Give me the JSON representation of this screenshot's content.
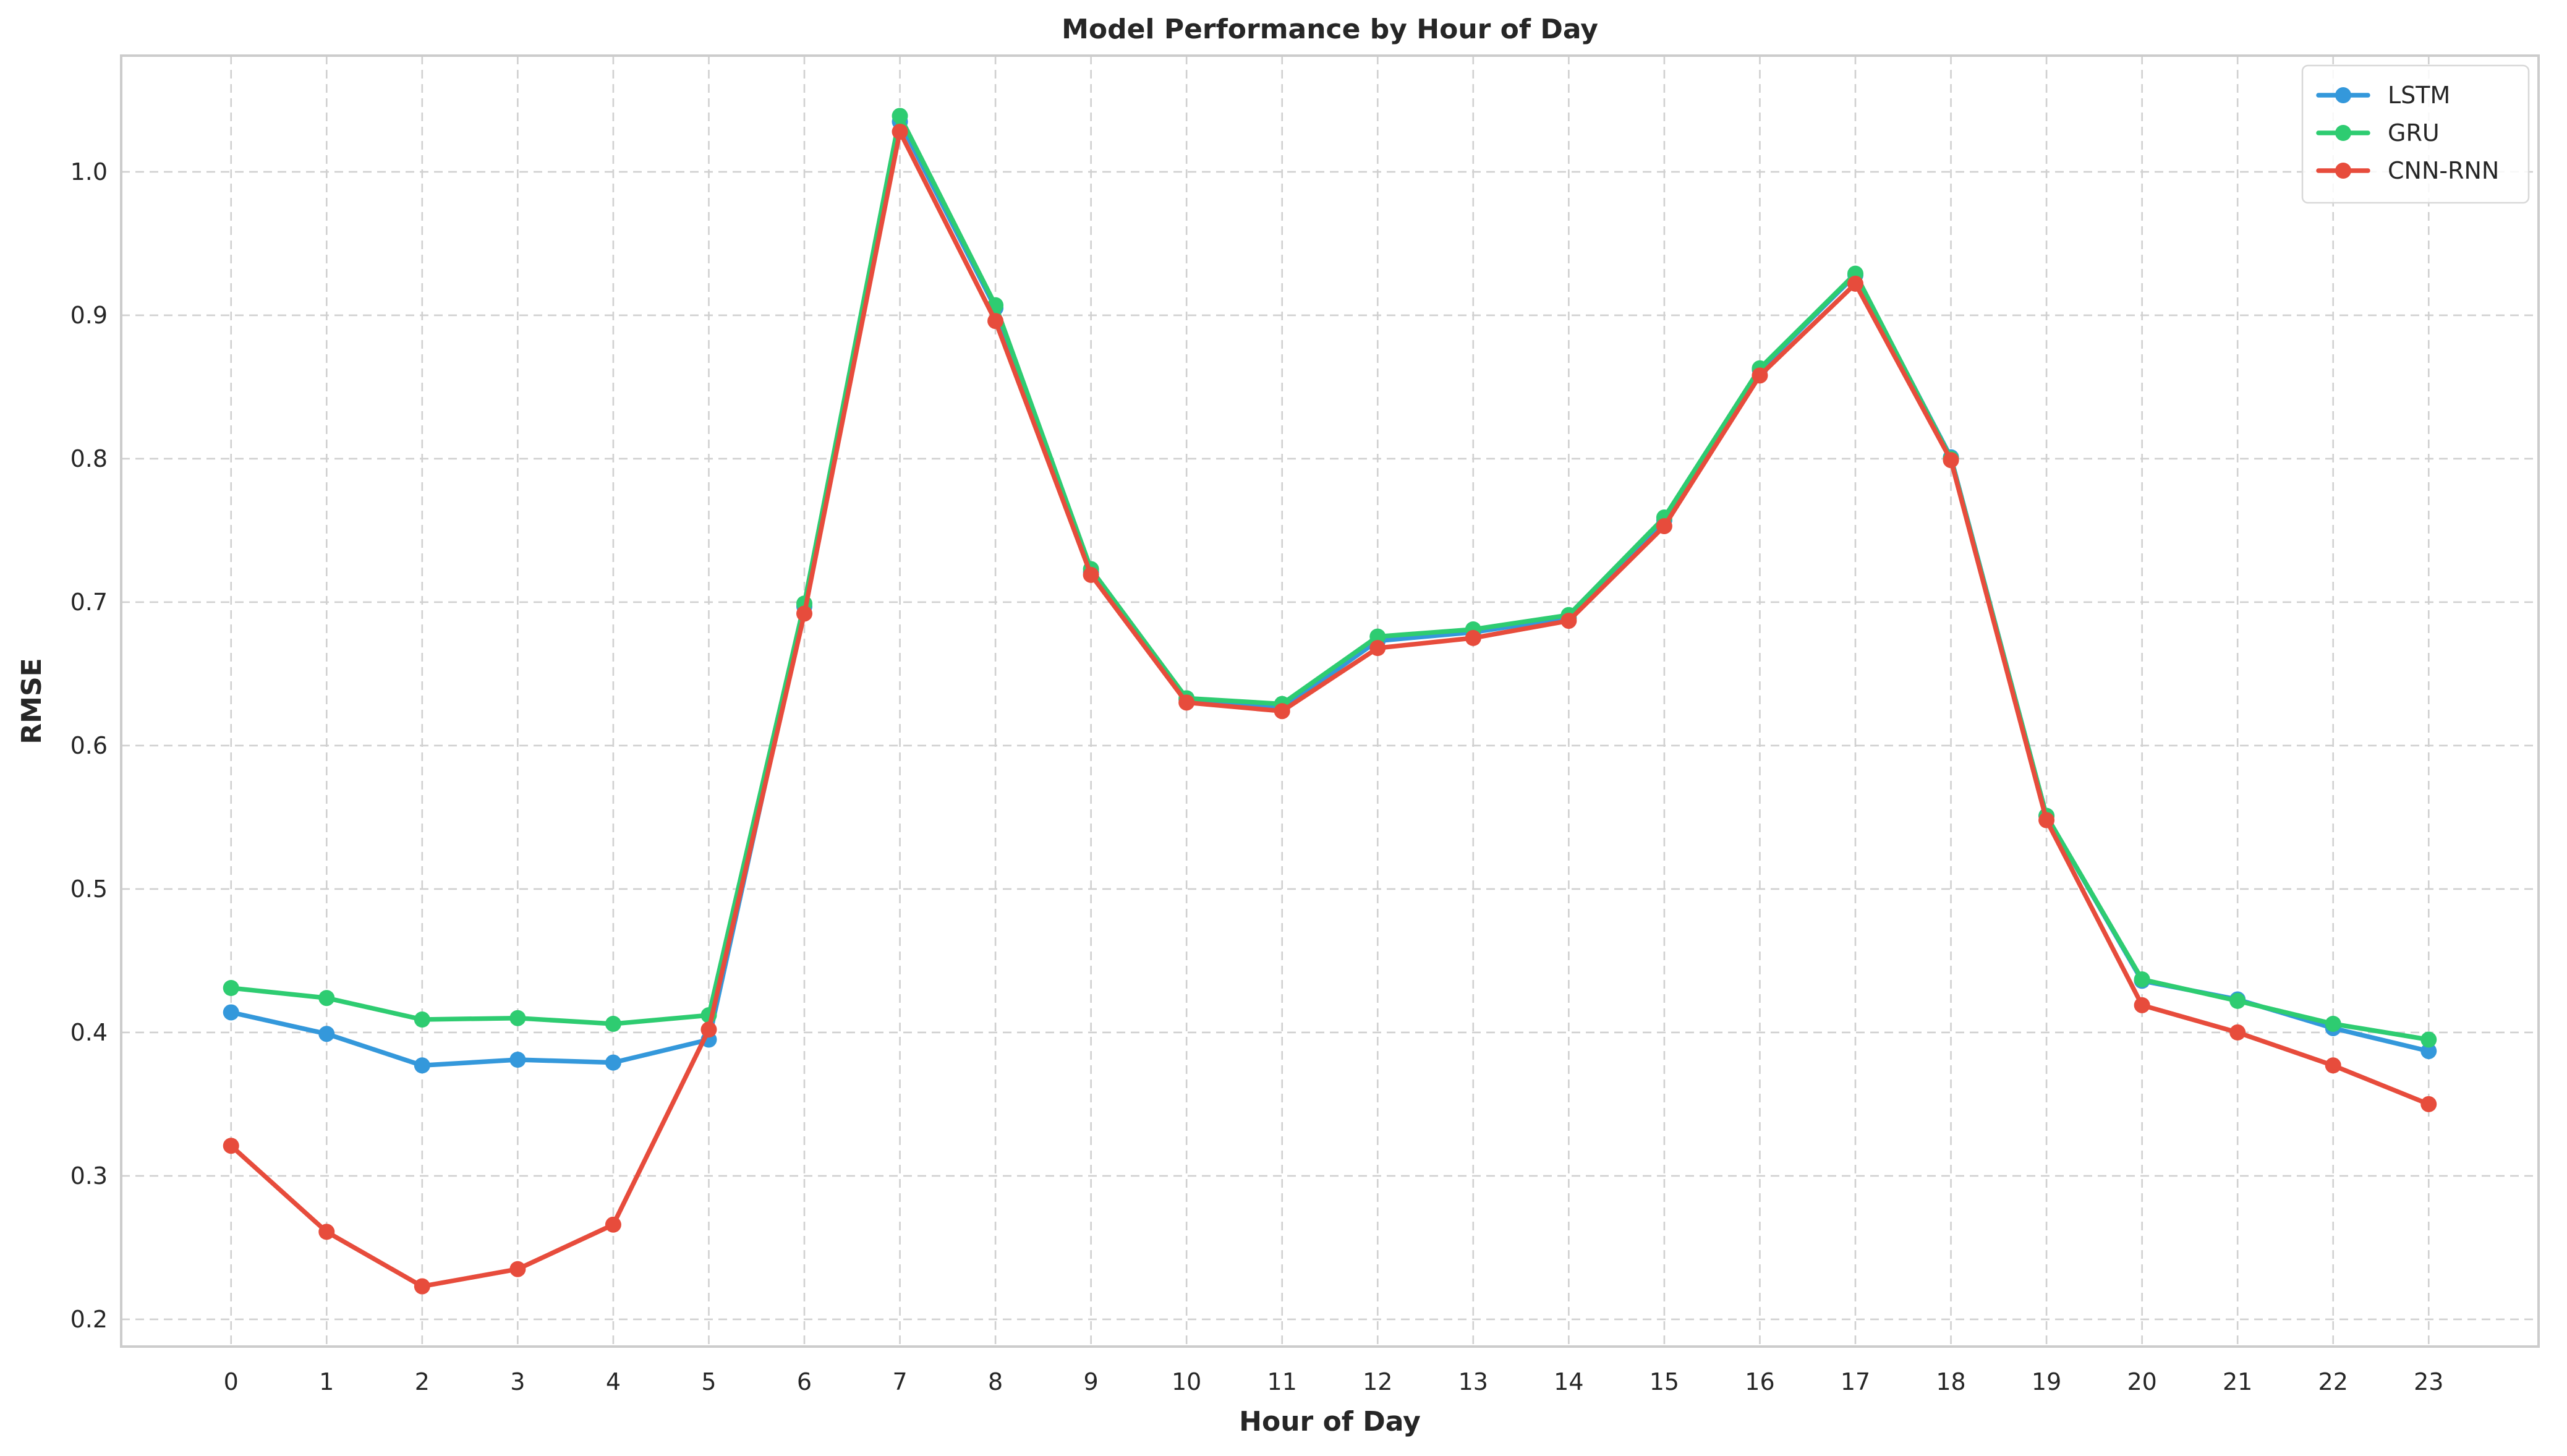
{
  "chart_data": {
    "type": "line",
    "title": "Model Performance by Hour of Day",
    "xlabel": "Hour of Day",
    "ylabel": "RMSE",
    "x": [
      0,
      1,
      2,
      3,
      4,
      5,
      6,
      7,
      8,
      9,
      10,
      11,
      12,
      13,
      14,
      15,
      16,
      17,
      18,
      19,
      20,
      21,
      22,
      23
    ],
    "x_tick_labels": [
      "0",
      "1",
      "2",
      "3",
      "4",
      "5",
      "6",
      "7",
      "8",
      "9",
      "10",
      "11",
      "12",
      "13",
      "14",
      "15",
      "16",
      "17",
      "18",
      "19",
      "20",
      "21",
      "22",
      "23"
    ],
    "xlim": [
      -1.15,
      24.15
    ],
    "ylim": [
      0.181,
      1.081
    ],
    "y_ticks": [
      0.2,
      0.3,
      0.4,
      0.5,
      0.6,
      0.7,
      0.8,
      0.9,
      1.0
    ],
    "y_tick_labels": [
      "0.2",
      "0.3",
      "0.4",
      "0.5",
      "0.6",
      "0.7",
      "0.8",
      "0.9",
      "1.0"
    ],
    "grid": true,
    "legend_position": "top-right",
    "series": [
      {
        "name": "LSTM",
        "color": "#3498db",
        "values": [
          0.414,
          0.399,
          0.377,
          0.381,
          0.379,
          0.395,
          0.697,
          1.035,
          0.905,
          0.721,
          0.632,
          0.626,
          0.673,
          0.679,
          0.689,
          0.757,
          0.862,
          0.928,
          0.801,
          0.551,
          0.436,
          0.423,
          0.403,
          0.387
        ]
      },
      {
        "name": "GRU",
        "color": "#2ecc71",
        "values": [
          0.431,
          0.424,
          0.409,
          0.41,
          0.406,
          0.412,
          0.699,
          1.039,
          0.907,
          0.723,
          0.633,
          0.629,
          0.676,
          0.681,
          0.691,
          0.759,
          0.863,
          0.929,
          0.8,
          0.551,
          0.437,
          0.422,
          0.406,
          0.395
        ]
      },
      {
        "name": "CNN-RNN",
        "color": "#e74c3c",
        "values": [
          0.321,
          0.261,
          0.223,
          0.235,
          0.266,
          0.402,
          0.692,
          1.028,
          0.896,
          0.719,
          0.63,
          0.624,
          0.668,
          0.675,
          0.687,
          0.753,
          0.858,
          0.922,
          0.799,
          0.548,
          0.419,
          0.4,
          0.377,
          0.35
        ]
      }
    ]
  }
}
